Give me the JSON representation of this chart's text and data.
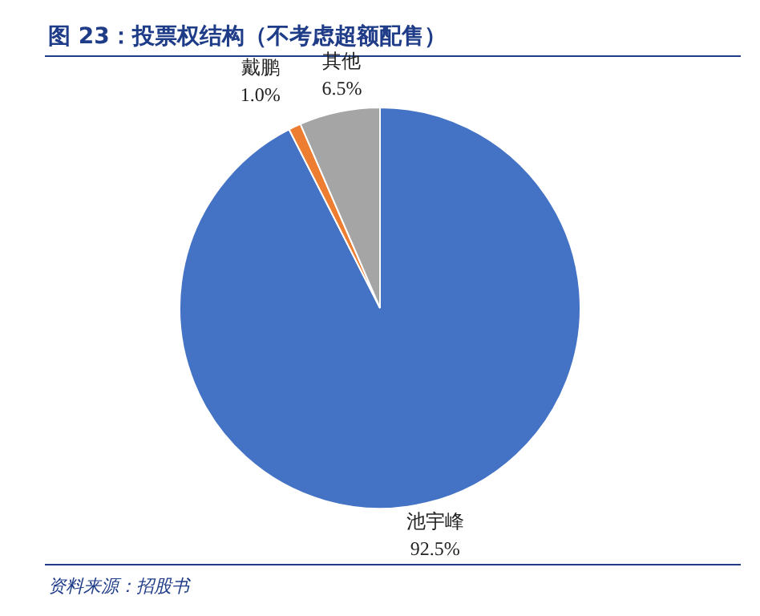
{
  "chart_data": {
    "type": "pie",
    "title": "图 23：投票权结构（不考虑超额配售）",
    "categories": [
      "池宇峰",
      "戴鹏",
      "其他"
    ],
    "values": [
      92.5,
      1.0,
      6.5
    ],
    "colors": [
      "#4472c4",
      "#ed7d31",
      "#a5a5a5"
    ],
    "value_labels": [
      "92.5%",
      "1.0%",
      "6.5%"
    ],
    "annotations": [
      "资料来源：招股书"
    ]
  }
}
